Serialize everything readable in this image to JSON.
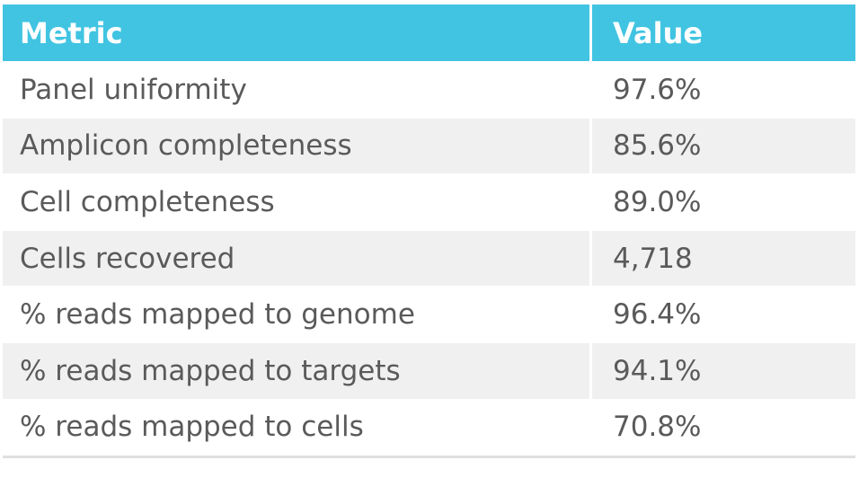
{
  "table": {
    "columns": [
      "Metric",
      "Value"
    ],
    "rows": [
      [
        "Panel uniformity",
        "97.6%"
      ],
      [
        "Amplicon completeness",
        "85.6%"
      ],
      [
        "Cell completeness",
        "89.0%"
      ],
      [
        "Cells recovered",
        "4,718"
      ],
      [
        "% reads mapped to genome",
        "96.4%"
      ],
      [
        "% reads mapped to targets",
        "94.1%"
      ],
      [
        "% reads mapped to cells",
        "70.8%"
      ]
    ]
  }
}
